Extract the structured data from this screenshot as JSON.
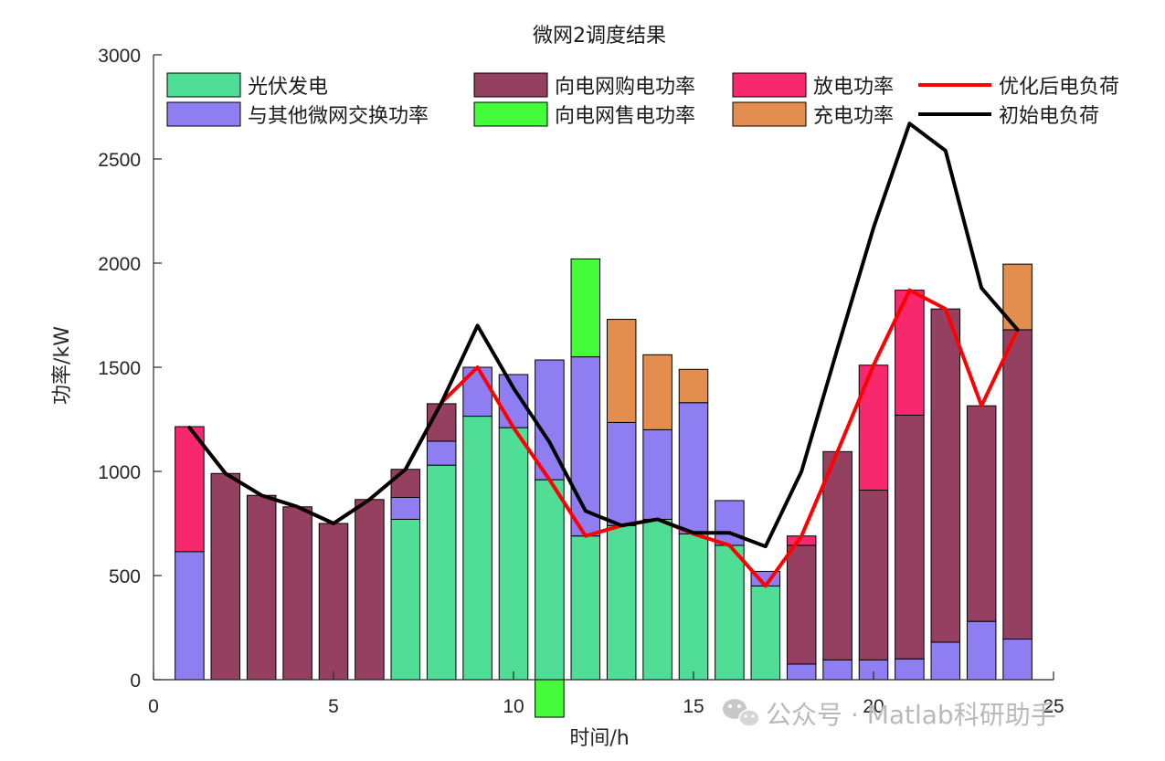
{
  "chart_data": {
    "type": "bar",
    "title": "微网2调度结果",
    "xlabel": "时间/h",
    "ylabel": "功率/kW",
    "xlim": [
      0,
      25
    ],
    "ylim": [
      0,
      3000
    ],
    "xticks": [
      0,
      5,
      10,
      15,
      20,
      25
    ],
    "yticks": [
      0,
      500,
      1000,
      1500,
      2000,
      2500,
      3000
    ],
    "x": [
      1,
      2,
      3,
      4,
      5,
      6,
      7,
      8,
      9,
      10,
      11,
      12,
      13,
      14,
      15,
      16,
      17,
      18,
      19,
      20,
      21,
      22,
      23,
      24
    ],
    "stack_order": [
      "pv",
      "exchange",
      "buy",
      "sell",
      "discharge",
      "charge"
    ],
    "series": [
      {
        "key": "pv",
        "name": "光伏发电",
        "color": "#50DE96",
        "values": [
          0,
          0,
          0,
          0,
          0,
          0,
          770,
          1030,
          1265,
          1210,
          960,
          690,
          740,
          770,
          700,
          645,
          450,
          0,
          0,
          0,
          0,
          0,
          0,
          0
        ]
      },
      {
        "key": "exchange",
        "name": "与其他微网交换功率",
        "color": "#8F7DF2",
        "values": [
          615,
          0,
          0,
          0,
          0,
          0,
          105,
          115,
          235,
          255,
          575,
          860,
          495,
          430,
          630,
          215,
          70,
          75,
          95,
          95,
          100,
          180,
          280,
          195
        ]
      },
      {
        "key": "buy",
        "name": "向电网购电功率",
        "color": "#954061",
        "values": [
          0,
          990,
          885,
          830,
          750,
          865,
          135,
          180,
          0,
          0,
          0,
          0,
          0,
          0,
          0,
          0,
          0,
          570,
          1000,
          815,
          1170,
          1600,
          1035,
          1485
        ]
      },
      {
        "key": "sell",
        "name": "向电网售电功率",
        "color": "#44FC3A",
        "values": [
          0,
          0,
          0,
          0,
          0,
          0,
          0,
          0,
          0,
          0,
          -180,
          470,
          0,
          0,
          0,
          0,
          0,
          0,
          0,
          0,
          0,
          0,
          0,
          0
        ]
      },
      {
        "key": "discharge",
        "name": "放电功率",
        "color": "#F8286F",
        "values": [
          600,
          0,
          0,
          0,
          0,
          0,
          0,
          0,
          0,
          0,
          0,
          0,
          0,
          0,
          0,
          0,
          0,
          45,
          0,
          600,
          600,
          0,
          0,
          0
        ]
      },
      {
        "key": "charge",
        "name": "充电功率",
        "color": "#E38D4F",
        "values": [
          0,
          0,
          0,
          0,
          0,
          0,
          0,
          0,
          0,
          0,
          0,
          0,
          495,
          360,
          160,
          0,
          0,
          0,
          0,
          0,
          0,
          0,
          0,
          315
        ]
      }
    ],
    "lines": [
      {
        "key": "optimized",
        "name": "优化后电负荷",
        "color": "#FF0000",
        "values": [
          1210,
          990,
          885,
          830,
          750,
          865,
          1010,
          1330,
          1500,
          1210,
          960,
          690,
          740,
          770,
          700,
          645,
          450,
          690,
          1095,
          1510,
          1870,
          1780,
          1315,
          1680
        ]
      },
      {
        "key": "initial",
        "name": "初始电负荷",
        "color": "#000000",
        "values": [
          1210,
          990,
          885,
          830,
          750,
          865,
          1010,
          1330,
          1700,
          1400,
          1140,
          810,
          740,
          770,
          705,
          705,
          640,
          1000,
          1590,
          2170,
          2670,
          2540,
          1880,
          1680
        ]
      }
    ],
    "legend_layout": [
      [
        "pv",
        "buy",
        "discharge",
        "optimized"
      ],
      [
        "exchange",
        "sell",
        "charge",
        "initial"
      ]
    ],
    "legend_position": "top"
  },
  "watermark": {
    "text": "公众号 · Matlab科研助手"
  }
}
